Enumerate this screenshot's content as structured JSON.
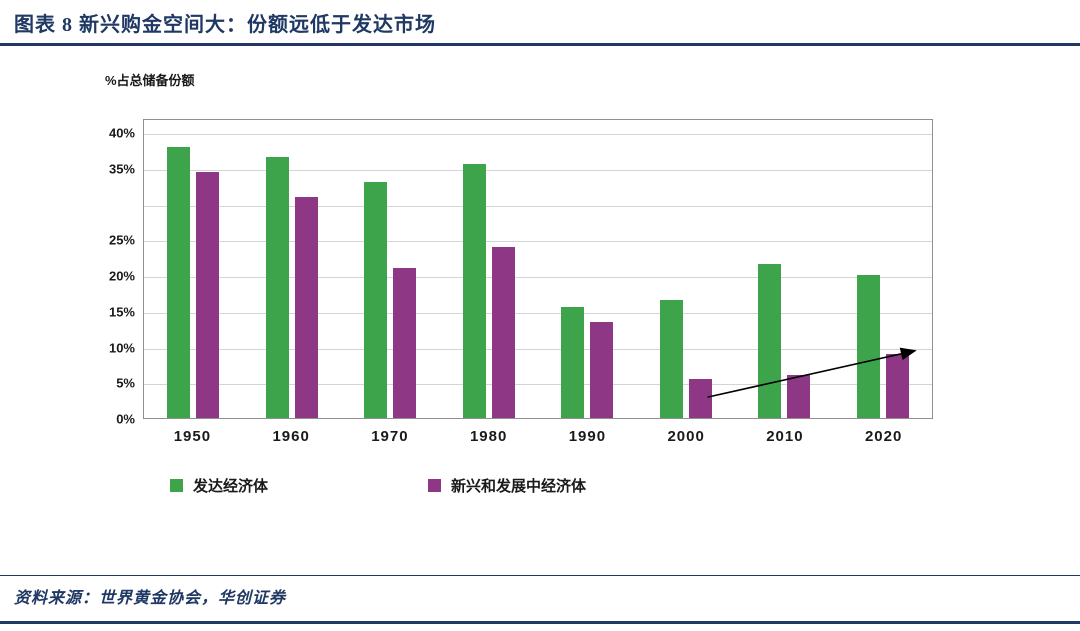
{
  "header": {
    "title": "图表 8  新兴购金空间大：份额远低于发达市场"
  },
  "colors": {
    "accent_navy": "#1F3864",
    "bar_green": "#3EA44B",
    "bar_purple": "#8E3785",
    "gridline": "#D4D4D4",
    "plot_border": "#8F8F8F"
  },
  "chart_data": {
    "type": "bar",
    "title": "图表 8  新兴购金空间大：份额远低于发达市场",
    "axis_title": "%占总储备份额",
    "categories": [
      "1950",
      "1960",
      "1970",
      "1980",
      "1990",
      "2000",
      "2010",
      "2020"
    ],
    "series": [
      {
        "key": "developed",
        "name": "发达经济体",
        "color": "#3EA44B",
        "values": [
          38,
          36.5,
          33,
          35.5,
          15.5,
          16.5,
          21.5,
          20
        ]
      },
      {
        "key": "emerging",
        "name": "新兴和发展中经济体",
        "color": "#8E3785",
        "values": [
          34.5,
          31,
          21,
          24,
          13.5,
          5.5,
          6,
          9
        ]
      }
    ],
    "ylim": [
      0,
      40
    ],
    "yticks": [
      {
        "value": 40,
        "label": "40%"
      },
      {
        "value": 35,
        "label": "35%"
      },
      {
        "value": 30,
        "label": ""
      },
      {
        "value": 25,
        "label": "25%"
      },
      {
        "value": 20,
        "label": "20%"
      },
      {
        "value": 15,
        "label": "15%"
      },
      {
        "value": 10,
        "label": "10%"
      },
      {
        "value": 5,
        "label": "5%"
      },
      {
        "value": 0,
        "label": "0%"
      }
    ],
    "grid": true,
    "legend_position": "bottom",
    "annotation": {
      "type": "arrow",
      "series": "emerging",
      "from_category": "2000",
      "from_value": 3.2,
      "to_category": "2020",
      "to_value": 9.7
    }
  },
  "footer": {
    "source": "资料来源：世界黄金协会，华创证券"
  }
}
